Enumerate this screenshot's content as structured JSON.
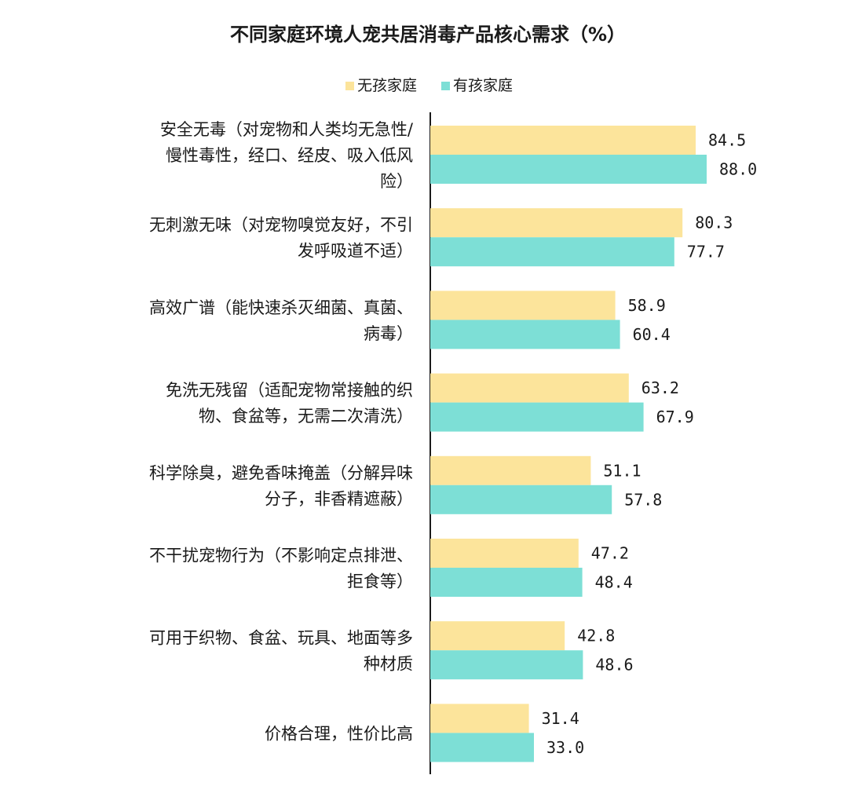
{
  "chart_data": {
    "type": "bar",
    "orientation": "horizontal",
    "title": "不同家庭环境人宠共居消毒产品核心需求（%）",
    "legend_position": "top",
    "grid": false,
    "xlim": [
      0,
      100
    ],
    "categories": [
      [
        "安全无毒（对宠物和人类均无急性/",
        "慢性毒性，经口、经皮、吸入低风",
        "险）"
      ],
      [
        "无刺激无味（对宠物嗅觉友好，不引",
        "发呼吸道不适）"
      ],
      [
        "高效广谱（能快速杀灭细菌、真菌、",
        "病毒）"
      ],
      [
        "免洗无残留（适配宠物常接触的织",
        "物、食盆等，无需二次清洗）"
      ],
      [
        "科学除臭，避免香味掩盖（分解异味",
        "分子，非香精遮蔽）"
      ],
      [
        "不干扰宠物行为（不影响定点排泄、",
        "拒食等）"
      ],
      [
        "可用于织物、食盆、玩具、地面等多",
        "种材质"
      ],
      [
        "价格合理，性价比高"
      ]
    ],
    "series": [
      {
        "name": "无孩家庭",
        "color": "#FCE49B",
        "values": [
          84.5,
          80.3,
          58.9,
          63.2,
          51.1,
          47.2,
          42.8,
          31.4
        ],
        "labels": [
          "84.5",
          "80.3",
          "58.9",
          "63.2",
          "51.1",
          "47.2",
          "42.8",
          "31.4"
        ]
      },
      {
        "name": "有孩家庭",
        "color": "#7DDFD6",
        "values": [
          88.0,
          77.7,
          60.4,
          67.9,
          57.8,
          48.4,
          48.6,
          33.0
        ],
        "labels": [
          "88.0",
          "77.7",
          "60.4",
          "67.9",
          "57.8",
          "48.4",
          "48.6",
          "33.0"
        ]
      }
    ]
  }
}
